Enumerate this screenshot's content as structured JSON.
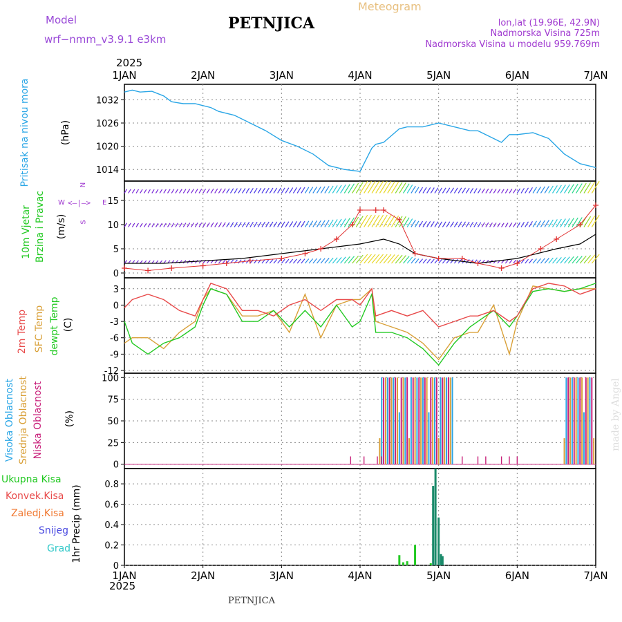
{
  "header": {
    "model_label": "Model",
    "model_name": "wrf−nmm_v3.9.1  e3km",
    "title": "PETNJICA",
    "subtitle": "Meteogram",
    "lonlat": "lon,lat (19.96E, 42.9N)",
    "elevation": "Nadmorska Visina 725m",
    "model_elevation": "Nadmorska Visina u modelu 959.769m",
    "year_top": "2025",
    "year_bottom": "2025",
    "footer": "PETNJICA",
    "watermark": "made by Angel"
  },
  "colors": {
    "pressure": "#2aa6e6",
    "temp2m": "#e84a4a",
    "sfc": "#d9a038",
    "dew": "#22c922",
    "wind_red": "#e03030",
    "high": "#2aa6e6",
    "mid": "#d9a038",
    "low": "#c8207a",
    "total": "#22c922",
    "grid": "#888888"
  },
  "labels": {
    "p1_a": "Pritisak na nivou mora",
    "p1_b": "(hPa)",
    "p2_a": "10m Vjetar",
    "p2_b": "Brzina i Pravac",
    "p2_c": "(m/s)",
    "p3_a": "2m Temp",
    "p3_b": "SFC Temp",
    "p3_c": "dewpt Temp",
    "p3_d": "(C)",
    "p4_a": "Visoka Oblacnost",
    "p4_b": "Srednja Oblacnost",
    "p4_c": "Niska Oblacnost",
    "p4_d": "(%)",
    "p5_unit": "1hr Precip (mm)",
    "compass_n": "N",
    "compass_s": "S",
    "compass_e": "E",
    "compass_w": "W",
    "legend_total": "Ukupna Kisa",
    "legend_conv": "Konvek.Kisa",
    "legend_frozen": "Zaledj.Kisa",
    "legend_snow": "Snijeg",
    "legend_grad": "Grad"
  },
  "chart_data": {
    "type": "meteogram",
    "x_axis": {
      "range_days": [
        0,
        6
      ],
      "tick_labels": [
        "1JAN",
        "2JAN",
        "3JAN",
        "4JAN",
        "5JAN",
        "6JAN",
        "7JAN"
      ]
    },
    "pressure": {
      "title": "Pritisak na nivou mora",
      "unit": "hPa",
      "ylim": [
        1011,
        1036
      ],
      "ticks": [
        1014,
        1020,
        1026,
        1032
      ],
      "x": [
        0,
        0.1,
        0.2,
        0.35,
        0.5,
        0.6,
        0.75,
        0.9,
        1.0,
        1.1,
        1.2,
        1.4,
        1.6,
        1.8,
        2.0,
        2.2,
        2.4,
        2.6,
        2.8,
        3.0,
        3.15,
        3.2,
        3.3,
        3.5,
        3.6,
        3.8,
        4.0,
        4.2,
        4.4,
        4.5,
        4.7,
        4.8,
        4.9,
        5.0,
        5.2,
        5.4,
        5.6,
        5.8,
        6.0
      ],
      "y": [
        1034,
        1034.5,
        1034,
        1034.2,
        1033,
        1031.5,
        1031,
        1031,
        1030.5,
        1030,
        1029,
        1028,
        1026,
        1024,
        1021.5,
        1020,
        1018,
        1015,
        1014,
        1013.5,
        1019.5,
        1020.5,
        1021,
        1024.5,
        1025,
        1025,
        1026,
        1025,
        1024,
        1024,
        1022,
        1021,
        1023,
        1023,
        1023.5,
        1022,
        1018,
        1015.5,
        1014.5
      ]
    },
    "wind": {
      "title": "10m Vjetar Brzina i Pravac",
      "unit": "m/s",
      "ylim": [
        -1,
        19
      ],
      "ticks": [
        0,
        5,
        10,
        15
      ],
      "speed_x": [
        0,
        0.3,
        0.6,
        1.0,
        1.3,
        1.6,
        2.0,
        2.3,
        2.5,
        2.7,
        2.9,
        3.0,
        3.2,
        3.3,
        3.5,
        3.7,
        4.0,
        4.3,
        4.5,
        4.8,
        5.0,
        5.3,
        5.5,
        5.8,
        6.0
      ],
      "speed": [
        1,
        0.5,
        1,
        1.5,
        2,
        2.5,
        3,
        4,
        5,
        7,
        10,
        13,
        13,
        13,
        11,
        4,
        3,
        3,
        2,
        1,
        2,
        5,
        7,
        10,
        14
      ],
      "mean_x": [
        0,
        0.5,
        1.0,
        1.5,
        2.0,
        2.5,
        3.0,
        3.3,
        3.5,
        3.7,
        4.0,
        4.5,
        5.0,
        5.5,
        5.8,
        6.0
      ],
      "mean": [
        2,
        2,
        2.5,
        3,
        4,
        5,
        6,
        7,
        6,
        4,
        3,
        2,
        3,
        5,
        6,
        8
      ]
    },
    "temperature": {
      "title": "2m Temp / SFC Temp / dewpt Temp",
      "unit": "C",
      "ylim": [
        -12.5,
        5
      ],
      "ticks": [
        -12,
        -9,
        -6,
        -3,
        0,
        3
      ],
      "x": [
        0,
        0.1,
        0.3,
        0.5,
        0.7,
        0.9,
        1.0,
        1.1,
        1.3,
        1.5,
        1.7,
        1.9,
        2.1,
        2.3,
        2.5,
        2.7,
        2.9,
        3.0,
        3.15,
        3.2,
        3.4,
        3.6,
        3.8,
        4.0,
        4.2,
        4.4,
        4.5,
        4.7,
        4.9,
        5.0,
        5.2,
        5.4,
        5.6,
        5.8,
        6.0
      ],
      "t2m": [
        -0.5,
        1,
        2,
        1,
        -1,
        -2,
        1,
        4,
        3,
        -1,
        -1,
        -2,
        0,
        1,
        -1,
        1,
        1,
        0,
        3,
        -2,
        -1,
        -2,
        -1,
        -4,
        -3,
        -2,
        -2,
        -1,
        -3,
        -2,
        3,
        4,
        3.5,
        2,
        3
      ],
      "tsfc": [
        -7,
        -6,
        -6,
        -8,
        -5,
        -3,
        1,
        3,
        2,
        -2,
        -2,
        -1,
        -5,
        2,
        -6,
        0,
        1,
        1,
        3,
        -3,
        -4,
        -5,
        -7,
        -10,
        -6,
        -5,
        -5,
        0,
        -9,
        -3,
        3.5,
        3,
        2.5,
        3,
        3
      ],
      "tdew": [
        -3,
        -7,
        -9,
        -7,
        -6,
        -4,
        0,
        3,
        2,
        -3,
        -3,
        -1,
        -4,
        -1,
        -4,
        0,
        -4,
        -3,
        2,
        -5,
        -5,
        -6,
        -8,
        -11,
        -7,
        -4,
        -3,
        -1,
        -4,
        -2,
        2.5,
        3,
        2.5,
        3,
        4
      ]
    },
    "clouds": {
      "title": "Visoka / Srednja / Niska Oblacnost",
      "unit": "%",
      "ylim": [
        -5,
        105
      ],
      "ticks": [
        0,
        25,
        50,
        75,
        100
      ],
      "blocks": [
        {
          "start": 3.25,
          "end": 4.2,
          "level": "mixed",
          "value": 100
        },
        {
          "start": 5.6,
          "end": 6.0,
          "level": "mixed",
          "value": 100
        }
      ]
    },
    "precipitation": {
      "title": "1hr Precip",
      "unit": "mm",
      "ylim": [
        0,
        0.95
      ],
      "ticks": [
        0,
        0.2,
        0.4,
        0.6,
        0.8
      ],
      "hours": [
        3.5,
        3.55,
        3.6,
        3.7,
        3.9,
        3.93,
        3.96,
        4.0,
        4.03,
        4.05
      ],
      "total": [
        0.1,
        0.03,
        0.04,
        0.2,
        0.02,
        0.78,
        0.95,
        0.47,
        0.11,
        0.09
      ],
      "convective": [
        0,
        0,
        0,
        0,
        0,
        0,
        0,
        0,
        0,
        0
      ]
    }
  }
}
